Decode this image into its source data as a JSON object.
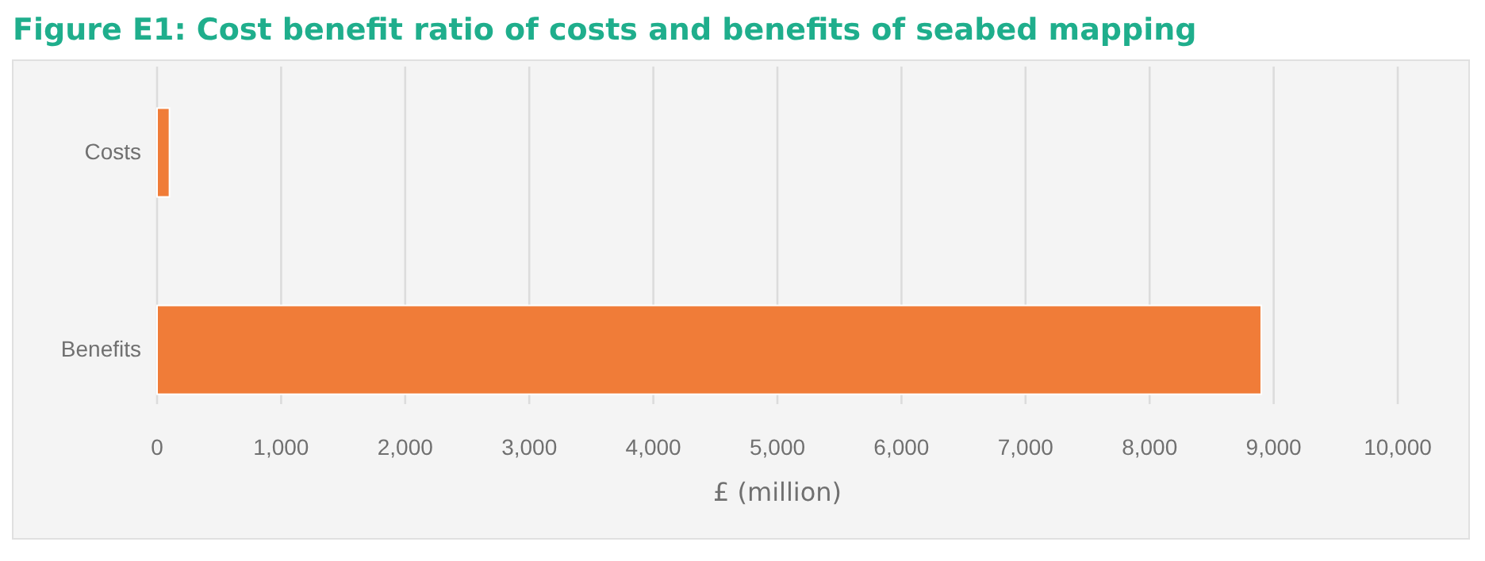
{
  "chart_data": {
    "type": "bar",
    "orientation": "horizontal",
    "title": "Figure E1: Cost benefit ratio of costs and benefits of seabed mapping",
    "xlabel": "£ (million)",
    "categories": [
      "Costs",
      "Benefits"
    ],
    "values": [
      100,
      8900
    ],
    "color": "#f07c38",
    "xlim": [
      0,
      10000
    ],
    "xticks": [
      {
        "value": 0,
        "label": "0"
      },
      {
        "value": 1000,
        "label": "1,000"
      },
      {
        "value": 2000,
        "label": "2,000"
      },
      {
        "value": 3000,
        "label": "3,000"
      },
      {
        "value": 4000,
        "label": "4,000"
      },
      {
        "value": 5000,
        "label": "5,000"
      },
      {
        "value": 6000,
        "label": "6,000"
      },
      {
        "value": 7000,
        "label": "7,000"
      },
      {
        "value": 8000,
        "label": "8,000"
      },
      {
        "value": 9000,
        "label": "9,000"
      },
      {
        "value": 10000,
        "label": "10,000"
      }
    ],
    "grid": "x"
  }
}
